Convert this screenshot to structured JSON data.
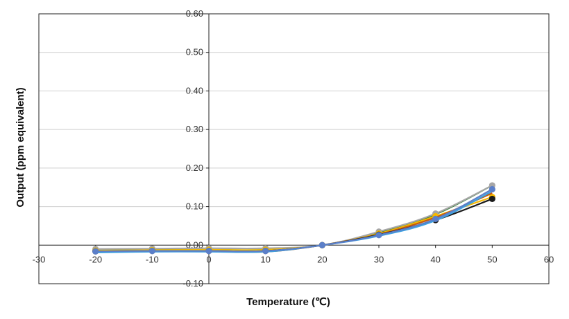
{
  "chart_data": {
    "type": "line",
    "title": "",
    "xlabel": "Temperature (℃)",
    "ylabel": "Output (ppm equivalent)",
    "xlim": [
      -30,
      60
    ],
    "ylim": [
      -0.1,
      0.6
    ],
    "xticks": [
      "-30",
      "-20",
      "-10",
      "0",
      "10",
      "20",
      "30",
      "40",
      "50",
      "60"
    ],
    "yticks": [
      "-0.10",
      "0.00",
      "0.10",
      "0.20",
      "0.30",
      "0.40",
      "0.50",
      "0.60"
    ],
    "grid": "horizontal",
    "legend": "none",
    "x": [
      -20,
      -10,
      0,
      10,
      20,
      30,
      40,
      50
    ],
    "series": [
      {
        "color": "#2e7d32",
        "marker": false,
        "values": [
          -0.012,
          -0.012,
          -0.012,
          -0.012,
          0.0,
          0.033,
          0.08,
          0.155
        ]
      },
      {
        "color": "#a6a6a6",
        "marker": true,
        "values": [
          -0.01,
          -0.009,
          -0.008,
          -0.008,
          0.0,
          0.035,
          0.082,
          0.155
        ]
      },
      {
        "color": "#f5b800",
        "marker": true,
        "values": [
          -0.014,
          -0.013,
          -0.012,
          -0.012,
          0.0,
          0.03,
          0.075,
          0.125
        ]
      },
      {
        "color": "#c55a11",
        "marker": false,
        "values": [
          -0.018,
          -0.016,
          -0.016,
          -0.017,
          0.0,
          0.028,
          0.072,
          0.135
        ]
      },
      {
        "color": "#1a1a1a",
        "marker": true,
        "values": [
          -0.016,
          -0.015,
          -0.015,
          -0.015,
          0.0,
          0.027,
          0.065,
          0.12
        ]
      },
      {
        "color": "#3ea0e0",
        "marker": false,
        "values": [
          -0.019,
          -0.017,
          -0.017,
          -0.017,
          0.0,
          0.024,
          0.064,
          0.14
        ]
      },
      {
        "color": "#5b7fc9",
        "marker": true,
        "values": [
          -0.016,
          -0.015,
          -0.015,
          -0.015,
          0.0,
          0.026,
          0.068,
          0.145
        ]
      }
    ]
  }
}
